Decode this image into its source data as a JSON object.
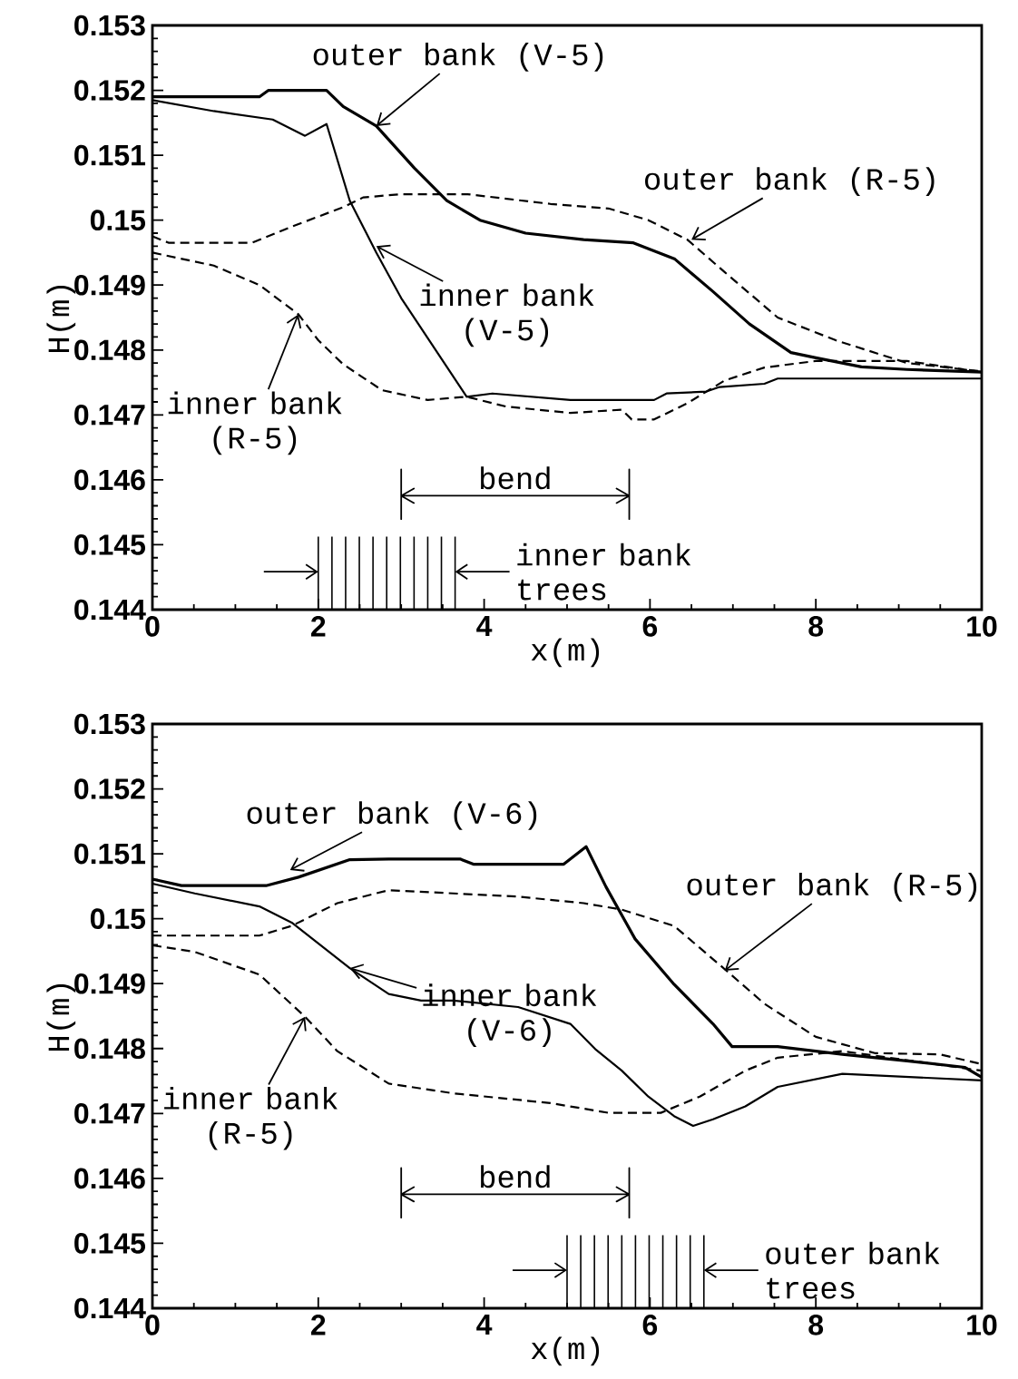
{
  "chart_data": [
    {
      "type": "line",
      "xlabel": "x(m)",
      "ylabel": "H(m)",
      "xlim": [
        0,
        10
      ],
      "ylim": [
        0.144,
        0.153
      ],
      "xticks": [
        0,
        2,
        4,
        6,
        8,
        10
      ],
      "yticks": [
        0.144,
        0.145,
        0.146,
        0.147,
        0.148,
        0.149,
        0.15,
        0.151,
        0.152,
        0.153
      ],
      "series": [
        {
          "color": "#000000",
          "line_style": "solid",
          "x": [
            0,
            1.29,
            1.4,
            2.1,
            2.3,
            2.7,
            3.16,
            3.55,
            3.95,
            4.5,
            5.2,
            5.8,
            6.3,
            6.76,
            7.2,
            7.7,
            8.0,
            8.55,
            9.1,
            10
          ],
          "values": [
            0.1519,
            0.1519,
            0.152,
            0.152,
            0.15175,
            0.15145,
            0.1508,
            0.1503,
            0.15,
            0.1498,
            0.1497,
            0.14965,
            0.1494,
            0.1489,
            0.1484,
            0.14796,
            0.14788,
            0.14774,
            0.1477,
            0.14766
          ]
        },
        {
          "color": "#000000",
          "line_style": "solid",
          "x": [
            0,
            0.74,
            1.45,
            1.84,
            2.1,
            2.38,
            2.7,
            3.0,
            3.79,
            4.1,
            5.04,
            6.05,
            6.2,
            6.68,
            6.84,
            7.38,
            7.54,
            10
          ],
          "values": [
            0.15185,
            0.15168,
            0.15155,
            0.1513,
            0.15148,
            0.1503,
            0.1495,
            0.1488,
            0.14728,
            0.14733,
            0.14723,
            0.14723,
            0.14733,
            0.14736,
            0.14743,
            0.14748,
            0.14756,
            0.14756
          ]
        },
        {
          "color": "#000000",
          "line_style": "dashed",
          "x": [
            0,
            0.2,
            1.2,
            1.68,
            2.3,
            2.54,
            3.0,
            3.8,
            4.8,
            5.5,
            5.98,
            6.45,
            6.9,
            7.54,
            8.24,
            9.1,
            10
          ],
          "values": [
            0.14975,
            0.14965,
            0.14965,
            0.1499,
            0.1502,
            0.15035,
            0.1504,
            0.1504,
            0.15025,
            0.15018,
            0.15,
            0.1497,
            0.1492,
            0.1485,
            0.14815,
            0.1478,
            0.14767
          ]
        },
        {
          "color": "#000000",
          "line_style": "dashed",
          "x": [
            0,
            0.74,
            1.29,
            1.76,
            2.0,
            2.3,
            2.77,
            3.32,
            3.79,
            4.26,
            5.04,
            5.66,
            5.78,
            6.05,
            6.45,
            6.9,
            7.38,
            8.0,
            9.1,
            10
          ],
          "values": [
            0.1495,
            0.1493,
            0.149,
            0.14855,
            0.14815,
            0.14778,
            0.14738,
            0.14723,
            0.14728,
            0.14713,
            0.14703,
            0.14708,
            0.14693,
            0.14693,
            0.14718,
            0.14753,
            0.14773,
            0.14783,
            0.14783,
            0.14766
          ]
        }
      ],
      "annotations": [
        {
          "text": "outer bank (V-5)",
          "x": 2.7,
          "y": 0.15145
        },
        {
          "text": "outer bank (R-5)",
          "x": 6.5,
          "y": 0.1497
        },
        {
          "text": "inner bank (V-5)",
          "x": 2.7,
          "y": 0.1496
        },
        {
          "text": "inner bank (R-5)",
          "x": 1.76,
          "y": 0.14855
        },
        "bend",
        "inner bank trees"
      ]
    },
    {
      "type": "line",
      "xlabel": "x(m)",
      "ylabel": "H(m)",
      "xlim": [
        0,
        10
      ],
      "ylim": [
        0.144,
        0.153
      ],
      "xticks": [
        0,
        2,
        4,
        6,
        8,
        10
      ],
      "yticks": [
        0.144,
        0.145,
        0.146,
        0.147,
        0.148,
        0.149,
        0.15,
        0.151,
        0.152,
        0.153
      ],
      "series": [
        {
          "color": "#000000",
          "line_style": "solid",
          "x": [
            0,
            0.35,
            1.37,
            1.76,
            2.38,
            2.85,
            3.71,
            3.87,
            4.96,
            5.23,
            5.47,
            5.82,
            6.29,
            6.76,
            6.99,
            7.54,
            8.32,
            9.1,
            9.8,
            10
          ],
          "values": [
            0.15061,
            0.15051,
            0.15051,
            0.15064,
            0.15091,
            0.15092,
            0.15092,
            0.15084,
            0.15084,
            0.15111,
            0.15049,
            0.14969,
            0.14899,
            0.14838,
            0.14803,
            0.14803,
            0.14791,
            0.14781,
            0.14771,
            0.14756
          ]
        },
        {
          "color": "#000000",
          "line_style": "solid",
          "x": [
            0,
            0.51,
            1.29,
            1.68,
            2.38,
            2.85,
            3.24,
            3.63,
            4.41,
            5.04,
            5.35,
            5.66,
            5.98,
            6.29,
            6.52,
            6.76,
            7.15,
            7.54,
            8.32,
            10
          ],
          "values": [
            0.15054,
            0.15039,
            0.15019,
            0.14994,
            0.14924,
            0.14884,
            0.14874,
            0.14874,
            0.14864,
            0.14838,
            0.14798,
            0.14766,
            0.14726,
            0.14696,
            0.14681,
            0.14691,
            0.14711,
            0.14741,
            0.14761,
            0.14751
          ]
        },
        {
          "color": "#000000",
          "line_style": "dashed",
          "x": [
            0,
            1.29,
            1.68,
            2.23,
            2.85,
            3.63,
            4.41,
            5.2,
            5.66,
            6.29,
            6.84,
            7.38,
            8.0,
            8.71,
            9.5,
            10
          ],
          "values": [
            0.14974,
            0.14974,
            0.14989,
            0.15024,
            0.15044,
            0.15039,
            0.15034,
            0.15024,
            0.15014,
            0.14989,
            0.14929,
            0.14869,
            0.14818,
            0.14793,
            0.14791,
            0.14776
          ]
        },
        {
          "color": "#000000",
          "line_style": "dashed",
          "x": [
            0,
            0.51,
            1.29,
            1.84,
            2.23,
            2.85,
            3.63,
            4.8,
            5.5,
            6.13,
            6.6,
            7.15,
            7.54,
            8.32,
            10
          ],
          "values": [
            0.14959,
            0.14949,
            0.14914,
            0.14849,
            0.14796,
            0.14746,
            0.14731,
            0.14716,
            0.14701,
            0.14701,
            0.14726,
            0.14766,
            0.14786,
            0.14796,
            0.14766
          ]
        }
      ],
      "annotations": [
        {
          "text": "outer bank (V-6)",
          "x": 1.66,
          "y": 0.15075
        },
        {
          "text": "outer bank (R-5)",
          "x": 6.9,
          "y": 0.1492
        },
        {
          "text": "inner bank (V-6)",
          "x": 2.38,
          "y": 0.14924
        },
        {
          "text": "inner bank (R-5)",
          "x": 1.84,
          "y": 0.14849
        },
        "bend",
        "outer bank trees"
      ]
    }
  ]
}
